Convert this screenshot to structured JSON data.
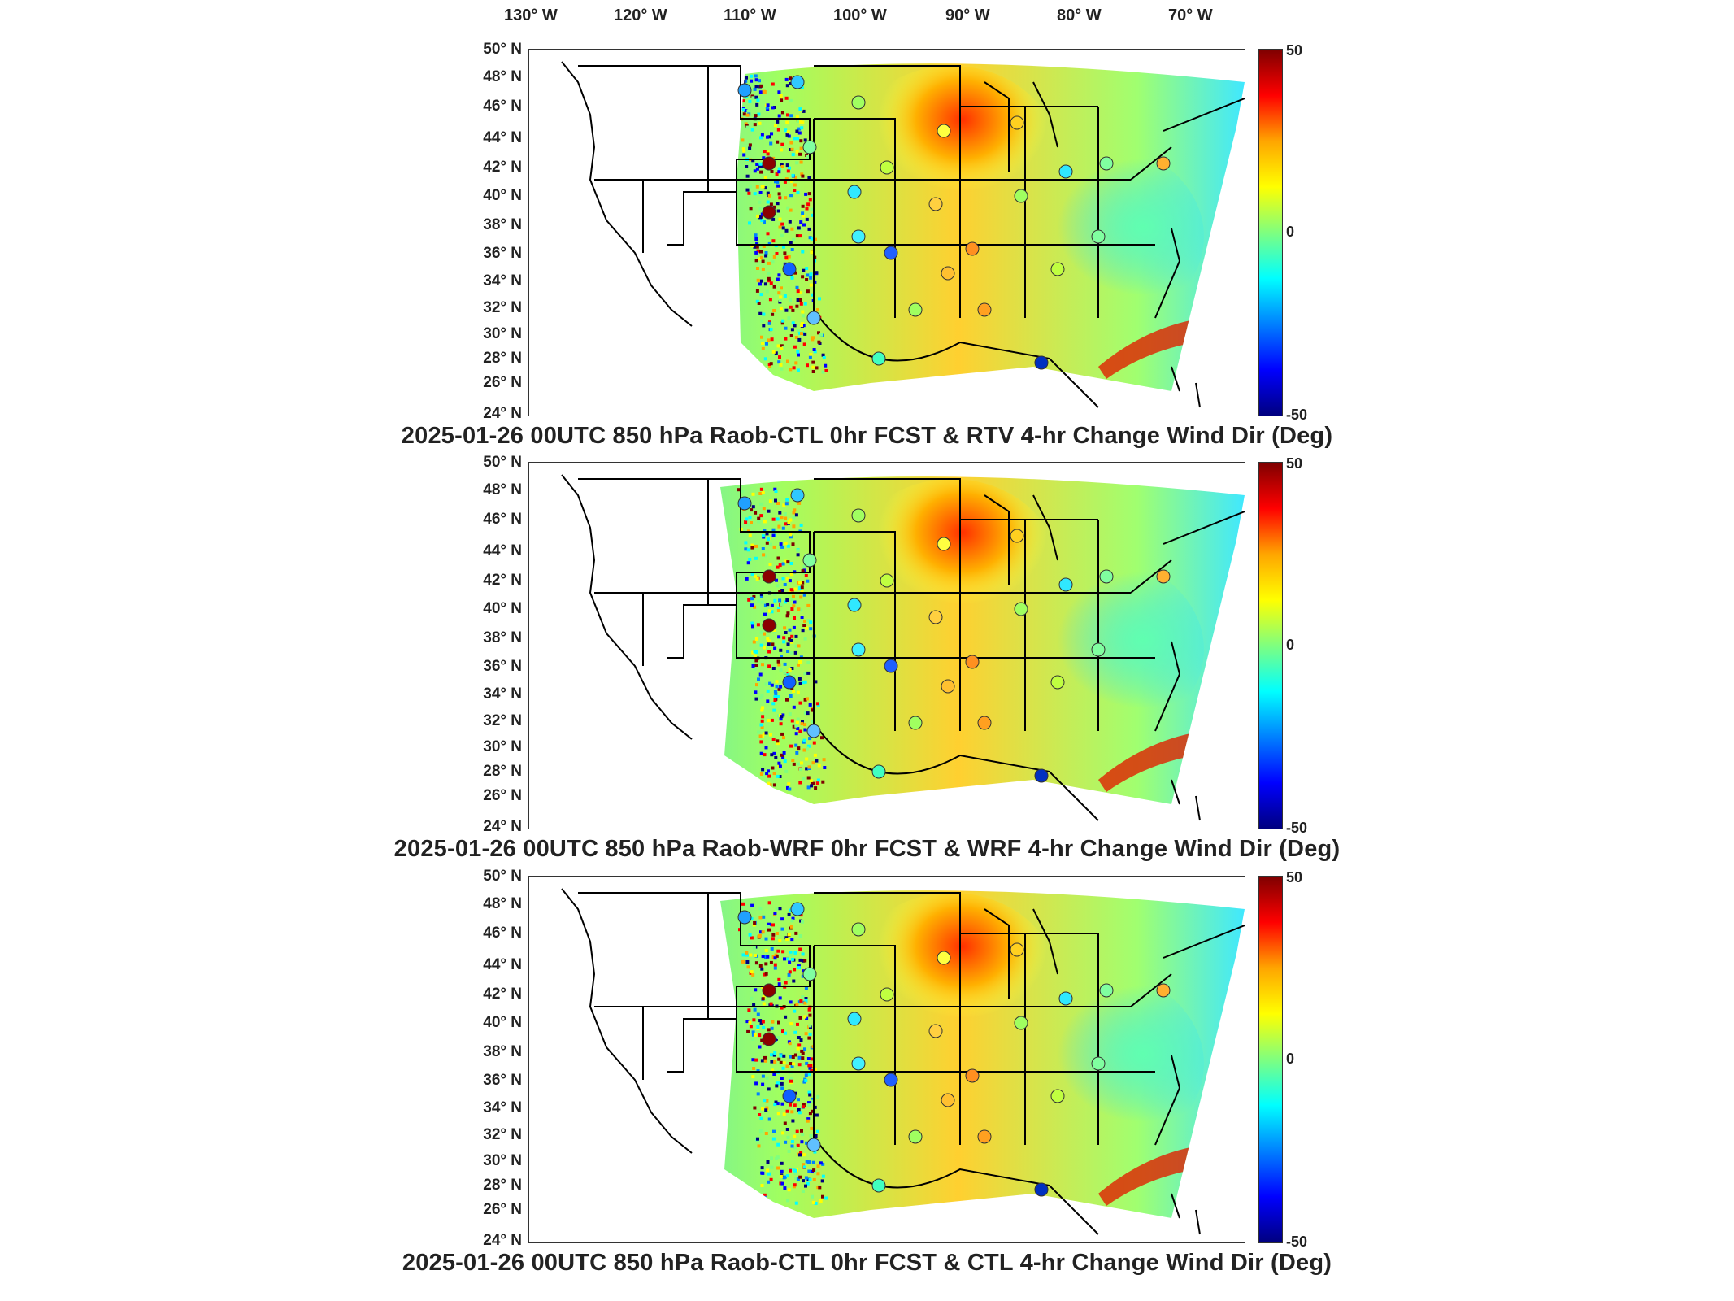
{
  "lon_labels": [
    "130° W",
    "120° W",
    "110° W",
    "100° W",
    "90° W",
    "80° W",
    "70° W"
  ],
  "lat_labels": [
    "50° N",
    "48° N",
    "46° N",
    "44° N",
    "42° N",
    "40° N",
    "38° N",
    "36° N",
    "34° N",
    "32° N",
    "30° N",
    "28° N",
    "26° N",
    "24° N"
  ],
  "colorbar": {
    "max": "50",
    "mid": "0",
    "min": "-50",
    "colors": [
      "#7f0000",
      "#ff0000",
      "#ffa500",
      "#ffff00",
      "#7fff7f",
      "#00ffff",
      "#0080ff",
      "#0000ff",
      "#00007f"
    ]
  },
  "panels": [
    {
      "title": "2025-01-26 00UTC 850 hPa Raob-CTL 0hr FCST & RTV 4-hr Change Wind Dir (Deg)"
    },
    {
      "title": "2025-01-26 00UTC 850 hPa Raob-WRF 0hr FCST & WRF 4-hr Change Wind Dir (Deg)"
    },
    {
      "title": "2025-01-26 00UTC 850 hPa Raob-CTL 0hr FCST & CTL 4-hr Change Wind Dir (Deg)"
    }
  ]
}
